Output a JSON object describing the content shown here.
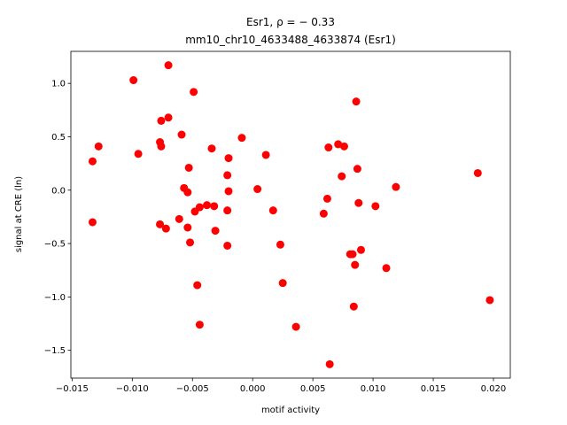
{
  "chart_data": {
    "type": "scatter",
    "title_line1": "Esr1, ρ = − 0.33",
    "title_line2": "mm10_chr10_4633488_4633874 (Esr1)",
    "xlabel": "motif activity",
    "ylabel": "signal at CRE (ln)",
    "xlim": [
      -0.0151,
      0.0214
    ],
    "ylim": [
      -1.76,
      1.3
    ],
    "xticks": [
      -0.015,
      -0.01,
      -0.005,
      0.0,
      0.005,
      0.01,
      0.015,
      0.02
    ],
    "xtick_labels": [
      "−0.015",
      "−0.010",
      "−0.005",
      "0.000",
      "0.005",
      "0.010",
      "0.015",
      "0.020"
    ],
    "yticks": [
      -1.5,
      -1.0,
      -0.5,
      0.0,
      0.5,
      1.0
    ],
    "ytick_labels": [
      "−1.5",
      "−1.0",
      "−0.5",
      "0.0",
      "0.5",
      "1.0"
    ],
    "marker_color": "#ff0000",
    "grid": false,
    "points": [
      {
        "x": -0.0133,
        "y": 0.27
      },
      {
        "x": -0.0128,
        "y": 0.41
      },
      {
        "x": -0.0133,
        "y": -0.3
      },
      {
        "x": -0.0099,
        "y": 1.03
      },
      {
        "x": -0.0095,
        "y": 0.34
      },
      {
        "x": -0.0076,
        "y": 0.65
      },
      {
        "x": -0.007,
        "y": 0.68
      },
      {
        "x": -0.007,
        "y": 1.17
      },
      {
        "x": -0.0077,
        "y": 0.45
      },
      {
        "x": -0.0076,
        "y": 0.41
      },
      {
        "x": -0.0077,
        "y": -0.32
      },
      {
        "x": -0.0072,
        "y": -0.36
      },
      {
        "x": -0.0061,
        "y": -0.27
      },
      {
        "x": -0.0059,
        "y": 0.52
      },
      {
        "x": -0.0049,
        "y": 0.92
      },
      {
        "x": -0.0053,
        "y": 0.21
      },
      {
        "x": -0.0057,
        "y": 0.02
      },
      {
        "x": -0.0054,
        "y": -0.02
      },
      {
        "x": -0.0054,
        "y": -0.35
      },
      {
        "x": -0.0052,
        "y": -0.49
      },
      {
        "x": -0.0048,
        "y": -0.2
      },
      {
        "x": -0.0044,
        "y": -0.16
      },
      {
        "x": -0.0038,
        "y": -0.14
      },
      {
        "x": -0.0032,
        "y": -0.15
      },
      {
        "x": -0.0034,
        "y": 0.39
      },
      {
        "x": -0.0031,
        "y": -0.38
      },
      {
        "x": -0.0046,
        "y": -0.89
      },
      {
        "x": -0.0044,
        "y": -1.26
      },
      {
        "x": -0.002,
        "y": 0.3
      },
      {
        "x": -0.0021,
        "y": 0.14
      },
      {
        "x": -0.002,
        "y": -0.01
      },
      {
        "x": -0.0021,
        "y": -0.19
      },
      {
        "x": -0.0021,
        "y": -0.52
      },
      {
        "x": -0.0009,
        "y": 0.49
      },
      {
        "x": 0.0004,
        "y": 0.01
      },
      {
        "x": 0.0011,
        "y": 0.33
      },
      {
        "x": 0.0017,
        "y": -0.19
      },
      {
        "x": 0.0023,
        "y": -0.51
      },
      {
        "x": 0.0025,
        "y": -0.87
      },
      {
        "x": 0.0036,
        "y": -1.28
      },
      {
        "x": 0.0059,
        "y": -0.22
      },
      {
        "x": 0.0062,
        "y": -0.08
      },
      {
        "x": 0.0063,
        "y": 0.4
      },
      {
        "x": 0.0071,
        "y": 0.43
      },
      {
        "x": 0.0076,
        "y": 0.41
      },
      {
        "x": 0.0074,
        "y": 0.13
      },
      {
        "x": 0.0086,
        "y": 0.83
      },
      {
        "x": 0.0087,
        "y": 0.2
      },
      {
        "x": 0.0088,
        "y": -0.12
      },
      {
        "x": 0.0081,
        "y": -0.6
      },
      {
        "x": 0.0083,
        "y": -0.6
      },
      {
        "x": 0.009,
        "y": -0.56
      },
      {
        "x": 0.0085,
        "y": -0.7
      },
      {
        "x": 0.0084,
        "y": -1.09
      },
      {
        "x": 0.0064,
        "y": -1.63
      },
      {
        "x": 0.0102,
        "y": -0.15
      },
      {
        "x": 0.0119,
        "y": 0.03
      },
      {
        "x": 0.0111,
        "y": -0.73
      },
      {
        "x": 0.0187,
        "y": 0.16
      },
      {
        "x": 0.0197,
        "y": -1.03
      }
    ]
  }
}
